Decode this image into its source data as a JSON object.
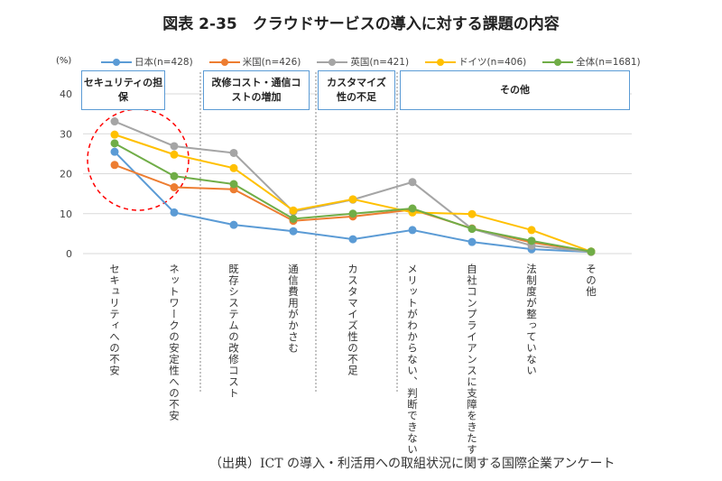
{
  "chart_data": {
    "type": "line",
    "title": "図表 2-35　クラウドサービスの導入に対する課題の内容",
    "unit_label": "(%)",
    "ylim": [
      0,
      40
    ],
    "yticks": [
      0,
      10,
      20,
      30,
      40
    ],
    "grid": true,
    "legend_position": "top",
    "categories": [
      "セキュリティへの不安",
      "ネットワークの安定性への不安",
      "既存システムの改修コスト",
      "通信費用がかさむ",
      "カスタマイズ性の不足",
      "メリットがわからない、判断できない",
      "自社コンプライアンスに支障をきたす",
      "法制度が整っていない",
      "その他"
    ],
    "groups": [
      {
        "label": "セキュリティの担保",
        "span": [
          0,
          1
        ]
      },
      {
        "label": "改修コスト・通信コストの増加",
        "span": [
          2,
          3
        ]
      },
      {
        "label": "カスタマイズ性の不足",
        "span": [
          4,
          4
        ]
      },
      {
        "label": "その他",
        "span": [
          5,
          8
        ]
      }
    ],
    "series": [
      {
        "name": "日本(n=428)",
        "color": "#5b9bd5",
        "values": [
          25.5,
          10.3,
          7.2,
          5.6,
          3.6,
          5.9,
          2.9,
          1.1,
          0.4
        ]
      },
      {
        "name": "米国(n=426)",
        "color": "#ed7d31",
        "values": [
          22.2,
          16.6,
          16.1,
          8.2,
          9.3,
          11.0,
          6.3,
          2.8,
          0.5
        ]
      },
      {
        "name": "英国(n=421)",
        "color": "#a5a5a5",
        "values": [
          33.1,
          26.9,
          25.2,
          10.5,
          13.5,
          17.9,
          6.2,
          2.0,
          0.4
        ]
      },
      {
        "name": "ドイツ(n=406)",
        "color": "#ffc000",
        "values": [
          29.8,
          24.8,
          21.4,
          10.8,
          13.6,
          10.3,
          9.9,
          5.9,
          0.5
        ]
      },
      {
        "name": "全体(n=1681)",
        "color": "#70ad47",
        "values": [
          27.6,
          19.4,
          17.4,
          8.7,
          10.0,
          11.3,
          6.2,
          3.2,
          0.5
        ]
      }
    ],
    "highlight": {
      "type": "dashed-circle",
      "color": "#ff0000",
      "around_categories": [
        0,
        1
      ]
    }
  },
  "source": "（出典）ICT の導入・利活用への取組状況に関する国際企業アンケート"
}
